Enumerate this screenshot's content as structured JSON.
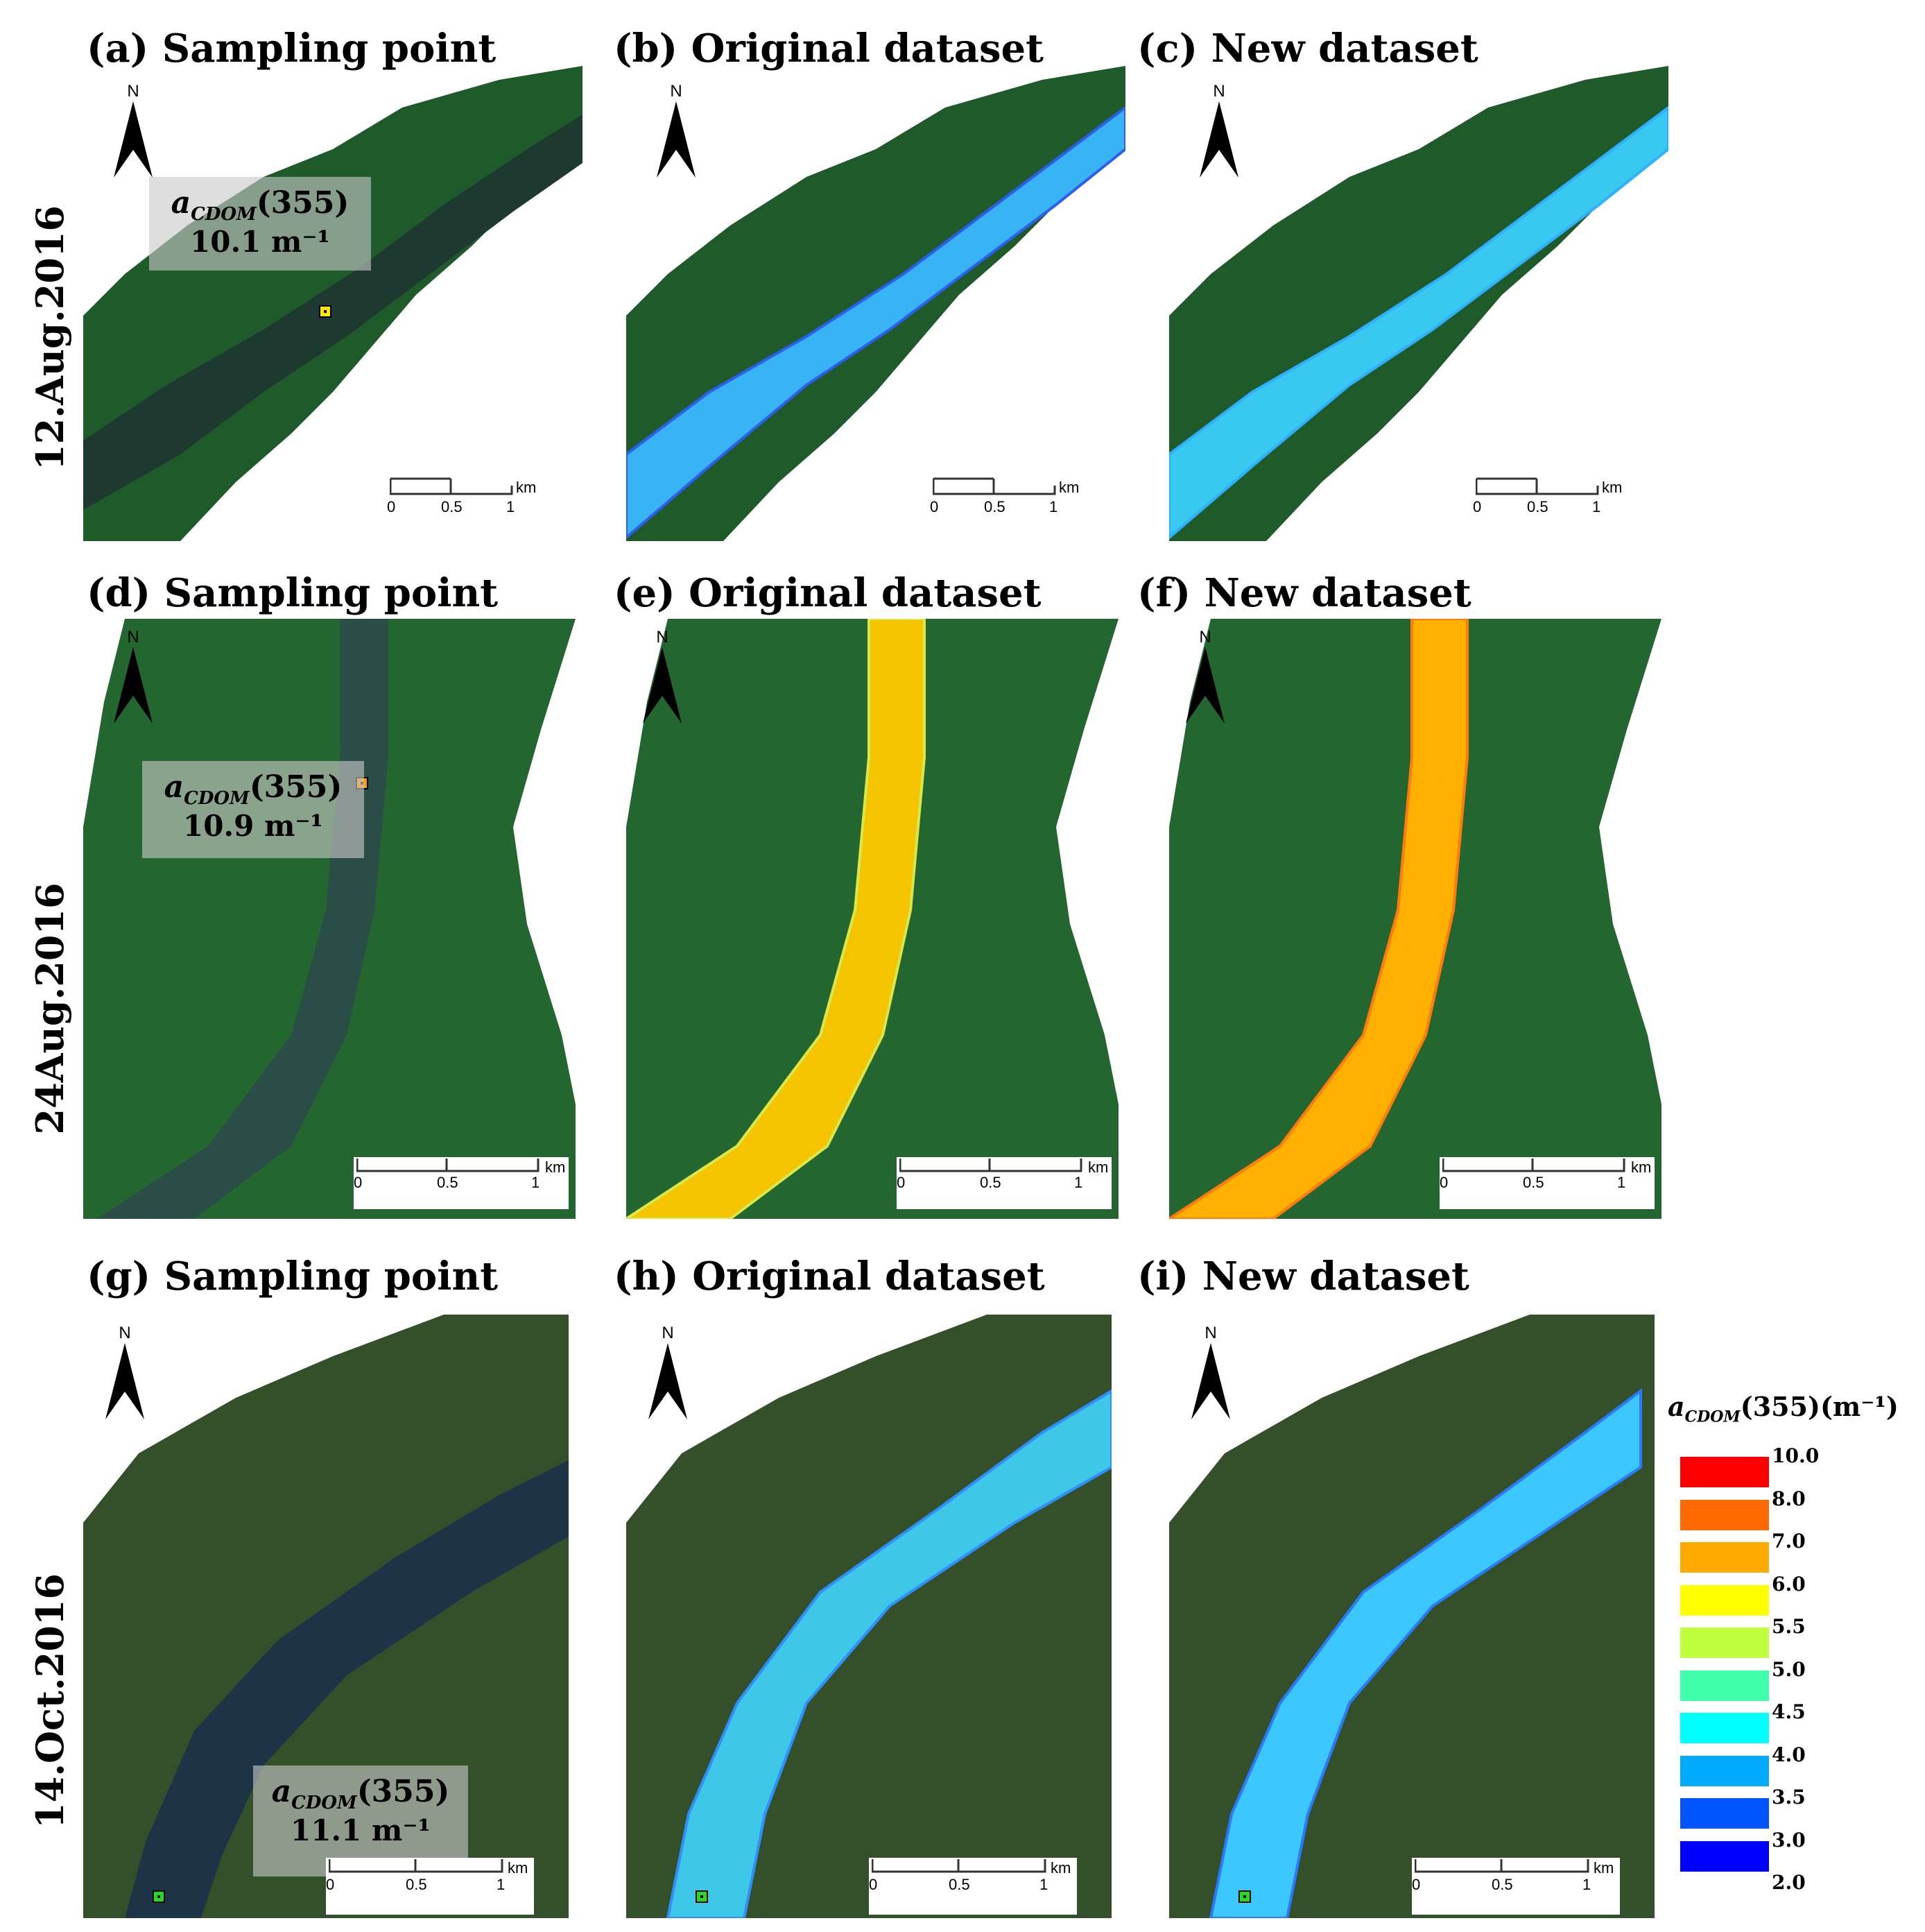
{
  "rows": [
    {
      "date_label": "12.Aug.2016",
      "panels": [
        {
          "title": "(a) Sampling point",
          "annotation": {
            "symbol": "a",
            "sub": "CDOM",
            "arg": "(355)",
            "value": "10.1 m⁻¹"
          }
        },
        {
          "title": "(b) Original dataset"
        },
        {
          "title": "(c) New dataset"
        }
      ]
    },
    {
      "date_label": "24Aug.2016",
      "panels": [
        {
          "title": "(d) Sampling point",
          "annotation": {
            "symbol": "a",
            "sub": "CDOM",
            "arg": "(355)",
            "value": "10.9 m⁻¹"
          }
        },
        {
          "title": "(e) Original dataset"
        },
        {
          "title": "(f) New dataset"
        }
      ]
    },
    {
      "date_label": "14.Oct.2016",
      "panels": [
        {
          "title": "(g) Sampling point",
          "annotation": {
            "symbol": "a",
            "sub": "CDOM",
            "arg": "(355)",
            "value": "11.1 m⁻¹"
          }
        },
        {
          "title": "(h) Original dataset"
        },
        {
          "title": "(i) New dataset"
        }
      ]
    }
  ],
  "north_label": "N",
  "scale": {
    "ticks": [
      "0",
      "0.5",
      "1"
    ],
    "unit": "km"
  },
  "marker_colors": [
    "#ffe600",
    "#ff9900",
    "#22dd22"
  ],
  "legend": {
    "title_symbol": "a",
    "title_sub": "CDOM",
    "title_rest": "(355)(m⁻¹)",
    "ticks": [
      "10.0",
      "8.0",
      "7.0",
      "6.0",
      "5.5",
      "5.0",
      "4.5",
      "4.0",
      "3.5",
      "3.0",
      "2.0"
    ],
    "colors": [
      "#ff0000",
      "#ff6a00",
      "#ffaa00",
      "#ffff00",
      "#bfff3f",
      "#3fffaa",
      "#00ffff",
      "#00aaff",
      "#0055ff",
      "#0000ff"
    ]
  },
  "river_colors": {
    "row1_original": [
      "#3a7bff",
      "#38b4f5",
      "#2a5ff0"
    ],
    "row1_new": [
      "#38c8f0",
      "#2fb0ff",
      "#3ad8e8"
    ],
    "row2_original": [
      "#f5c400",
      "#d8e84a",
      "#ff9a20"
    ],
    "row2_new": [
      "#ffb000",
      "#ff7a10",
      "#ffd000"
    ],
    "row3_original": [
      "#2f8fff",
      "#3fc7e8",
      "#7ce27a"
    ],
    "row3_new": [
      "#2a7aff",
      "#3cc8ff",
      "#c8e830"
    ]
  }
}
